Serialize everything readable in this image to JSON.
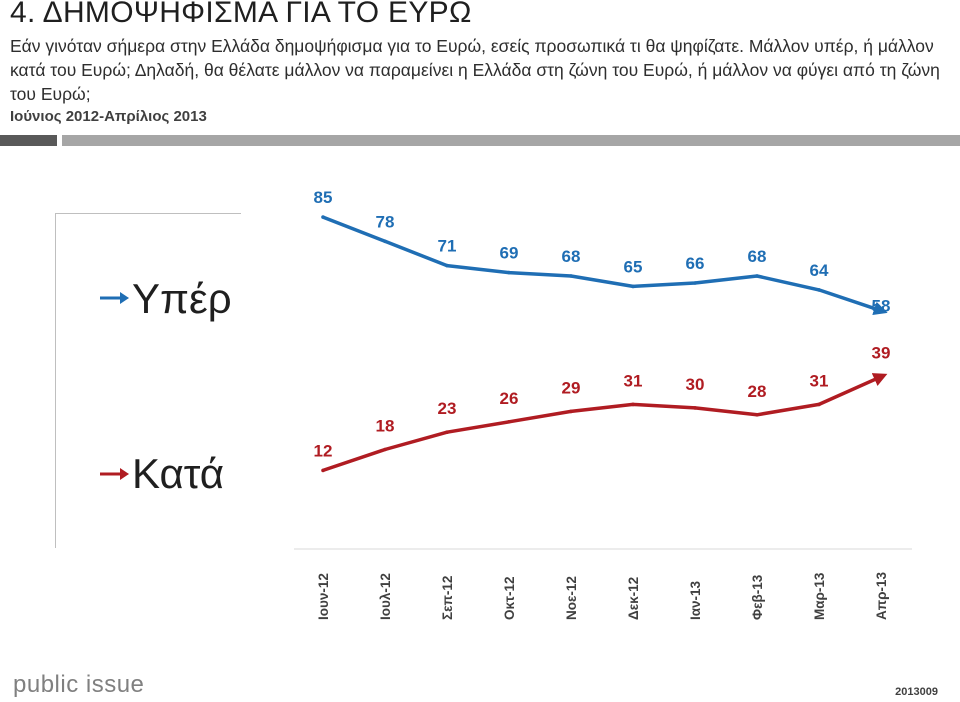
{
  "header": {
    "title": "4. ΔΗΜΟΨΗΦΙΣΜΑ ΓΙΑ ΤΟ ΕΥΡΩ",
    "question": "Εάν γινόταν σήμερα στην Ελλάδα δημοψήφισμα για το Ευρώ, εσείς προσωπικά τι θα ψηφίζατε. Μάλλον υπέρ, ή μάλλον κατά του Ευρώ; Δηλαδή, θα θέλατε μάλλον να παραμείνει η Ελλάδα στη ζώνη του Ευρώ, ή μάλλον να φύγει από τη ζώνη του Ευρώ;",
    "period": "Ιούνιος 2012-Απρίλιος 2013"
  },
  "legend": {
    "for_label": "Υπέρ",
    "against_label": "Κατά"
  },
  "chart_data": {
    "type": "line",
    "categories": [
      "Ιουν-12",
      "Ιουλ-12",
      "Σεπ-12",
      "Οκτ-12",
      "Νοε-12",
      "Δεκ-12",
      "Ιαν-13",
      "Φεβ-13",
      "Μαρ-13",
      "Απρ-13"
    ],
    "series": [
      {
        "name": "Υπέρ",
        "color": "#1f6eb4",
        "values": [
          85,
          78,
          71,
          69,
          68,
          65,
          66,
          68,
          64,
          58
        ]
      },
      {
        "name": "Κατά",
        "color": "#b01c22",
        "values": [
          12,
          18,
          23,
          26,
          29,
          31,
          30,
          28,
          31,
          39
        ]
      }
    ],
    "title": "",
    "xlabel": "",
    "ylabel": "",
    "grid": false,
    "legend": "left"
  },
  "footer": {
    "logo": "public issue",
    "code": "2013009"
  }
}
